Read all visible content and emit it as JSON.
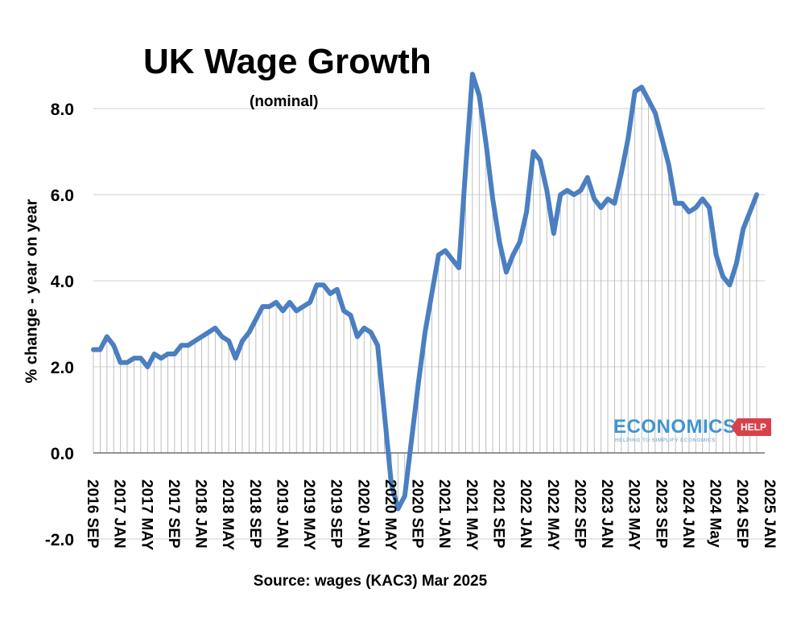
{
  "chart_data": {
    "type": "line",
    "title": "UK Wage Growth",
    "subtitle": "(nominal)",
    "ylabel": "% change  - year on year",
    "source": "Source: wages (KAC3) Mar 2025",
    "ylim": [
      -2.0,
      8.0
    ],
    "yticks": [
      "8.0",
      "6.0",
      "4.0",
      "2.0",
      "0.0",
      "-2.0"
    ],
    "xticks": [
      "2016 SEP",
      "2017 JAN",
      "2017 MAY",
      "2017 SEP",
      "2018 JAN",
      "2018 MAY",
      "2018 SEP",
      "2019 JAN",
      "2019 MAY",
      "2019 SEP",
      "2020 JAN",
      "2020 MAY",
      "2020 SEP",
      "2021 JAN",
      "2021 MAY",
      "2021 SEP",
      "2022 JAN",
      "2022 MAY",
      "2022 SEP",
      "2023 JAN",
      "2023 MAY",
      "2023 SEP",
      "2024 JAN",
      "2024 May",
      "2024 SEP",
      "2025 JAN"
    ],
    "grid": true,
    "line_color": "#4a7fc1",
    "series": [
      {
        "values": [
          2.4,
          2.4,
          2.7,
          2.5,
          2.1,
          2.1,
          2.2,
          2.2,
          2.0,
          2.3,
          2.2,
          2.3,
          2.3,
          2.5,
          2.5,
          2.6,
          2.7,
          2.8,
          2.9,
          2.7,
          2.6,
          2.2,
          2.6,
          2.8,
          3.1,
          3.4,
          3.4,
          3.5,
          3.3,
          3.5,
          3.3,
          3.4,
          3.5,
          3.9,
          3.9,
          3.7,
          3.8,
          3.3,
          3.2,
          2.7,
          2.9,
          2.8,
          2.5,
          0.9,
          -0.7,
          -1.3,
          -1.0,
          0.3,
          1.6,
          2.8,
          3.7,
          4.6,
          4.7,
          4.5,
          4.3,
          6.6,
          8.8,
          8.3,
          7.2,
          5.9,
          4.9,
          4.2,
          4.6,
          4.9,
          5.6,
          7.0,
          6.8,
          6.1,
          5.1,
          6.0,
          6.1,
          6.0,
          6.1,
          6.4,
          5.9,
          5.7,
          5.9,
          5.8,
          6.5,
          7.3,
          8.4,
          8.5,
          8.2,
          7.9,
          7.3,
          6.7,
          5.8,
          5.8,
          5.6,
          5.7,
          5.9,
          5.7,
          4.6,
          4.1,
          3.9,
          4.4,
          5.2,
          5.6,
          6.0
        ]
      }
    ]
  },
  "logo": {
    "main": "ECONOMICS",
    "tag": "HELP",
    "sub": "HELPING TO SIMPLIFY ECONOMICS"
  }
}
